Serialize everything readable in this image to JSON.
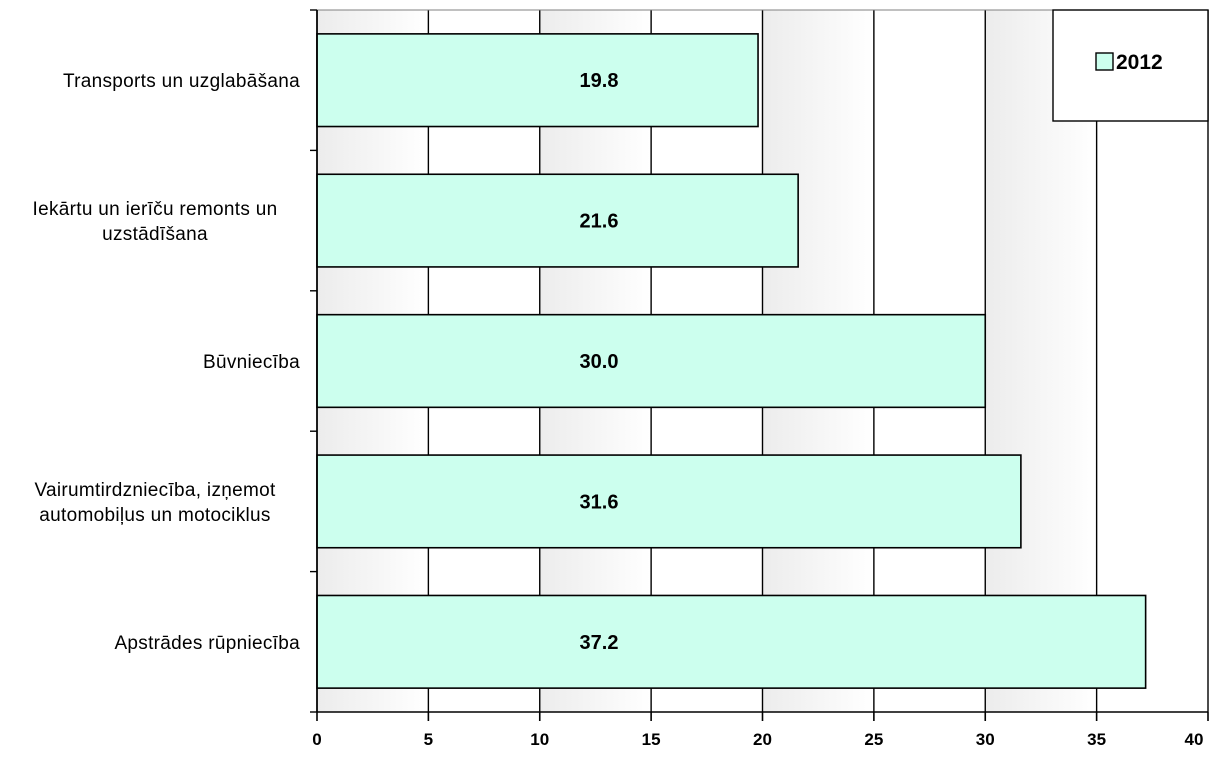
{
  "chart_data": {
    "type": "bar",
    "orientation": "horizontal",
    "categories": [
      [
        "Transports un uzglabāšana"
      ],
      [
        "Iekārtu un ierīču remonts un",
        "uzstādīšana"
      ],
      [
        "Būvniecība"
      ],
      [
        "Vairumtirdzniecība, izņemot",
        "automobiļus un motociklus"
      ],
      [
        "Apstrādes rūpniecība"
      ]
    ],
    "series": [
      {
        "name": "2012",
        "values": [
          19.8,
          21.6,
          30.0,
          31.6,
          37.2
        ],
        "data_labels": [
          "19.8",
          "21.6",
          "30.0",
          "31.6",
          "37.2"
        ],
        "color": "#ccffee"
      }
    ],
    "xlim": [
      0,
      40
    ],
    "x_ticks": [
      0,
      5,
      10,
      15,
      20,
      25,
      30,
      35,
      40
    ],
    "grid": true,
    "legend_position": "top-right",
    "colors": {
      "bar_fill": "#ccffee",
      "bar_stroke": "#000000",
      "gridline": "#000000",
      "plot_bg_light": "#ffffff",
      "plot_bg_dark": "#ececec"
    }
  }
}
